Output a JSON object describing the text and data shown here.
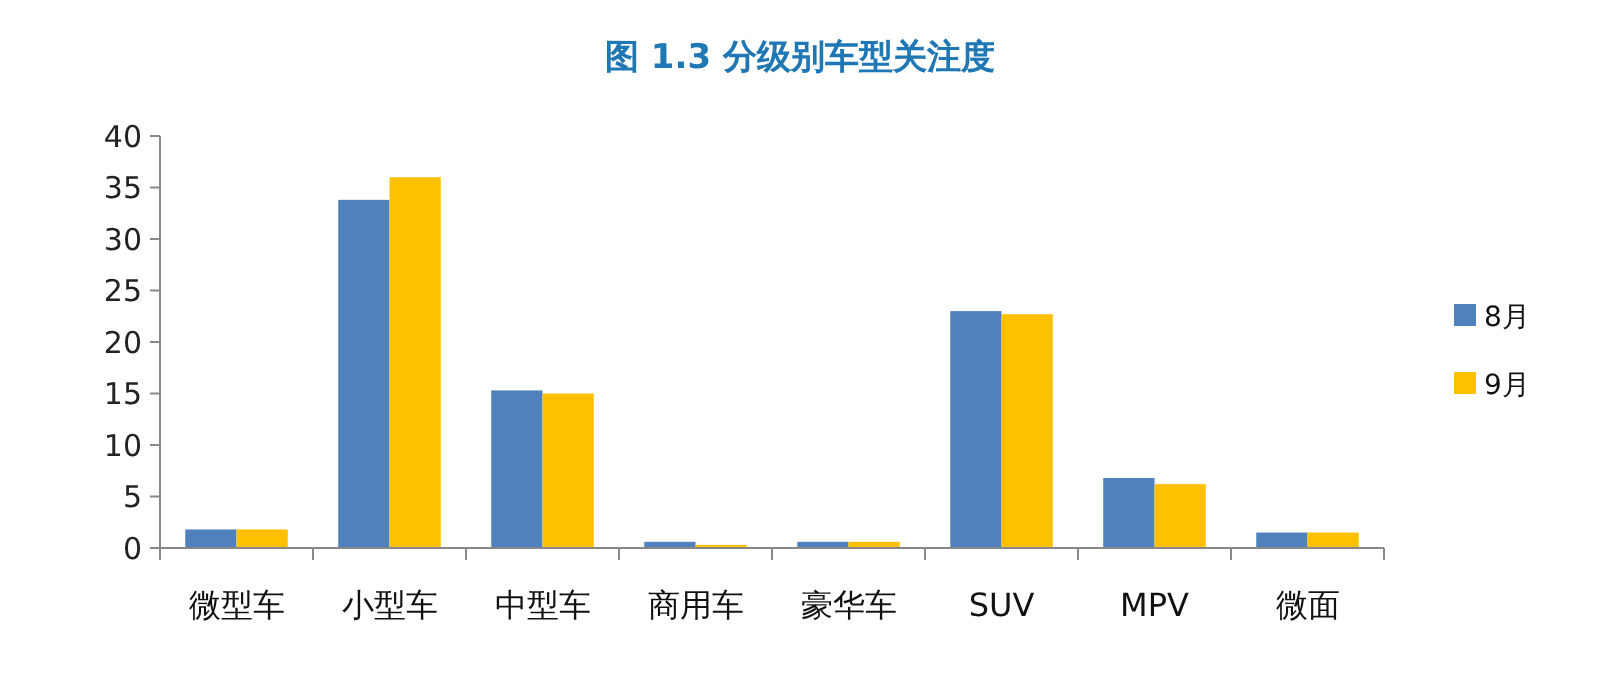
{
  "chart_data": {
    "type": "bar",
    "title": "图 1.3 分级别车型关注度",
    "categories": [
      "微型车",
      "小型车",
      "中型车",
      "商用车",
      "豪华车",
      "SUV",
      "MPV",
      "微面"
    ],
    "series": [
      {
        "name": "8月",
        "color": "#4f81bd",
        "values": [
          1.8,
          33.8,
          15.3,
          0.6,
          0.6,
          23,
          6.8,
          1.5
        ]
      },
      {
        "name": "9月",
        "color": "#ffc000",
        "values": [
          1.8,
          36,
          15,
          0.3,
          0.6,
          22.7,
          6.2,
          1.5
        ]
      }
    ],
    "ylim": [
      0,
      40
    ],
    "yticks": [
      0,
      5,
      10,
      15,
      20,
      25,
      30,
      35,
      40
    ],
    "grid": false,
    "legend": "right"
  }
}
